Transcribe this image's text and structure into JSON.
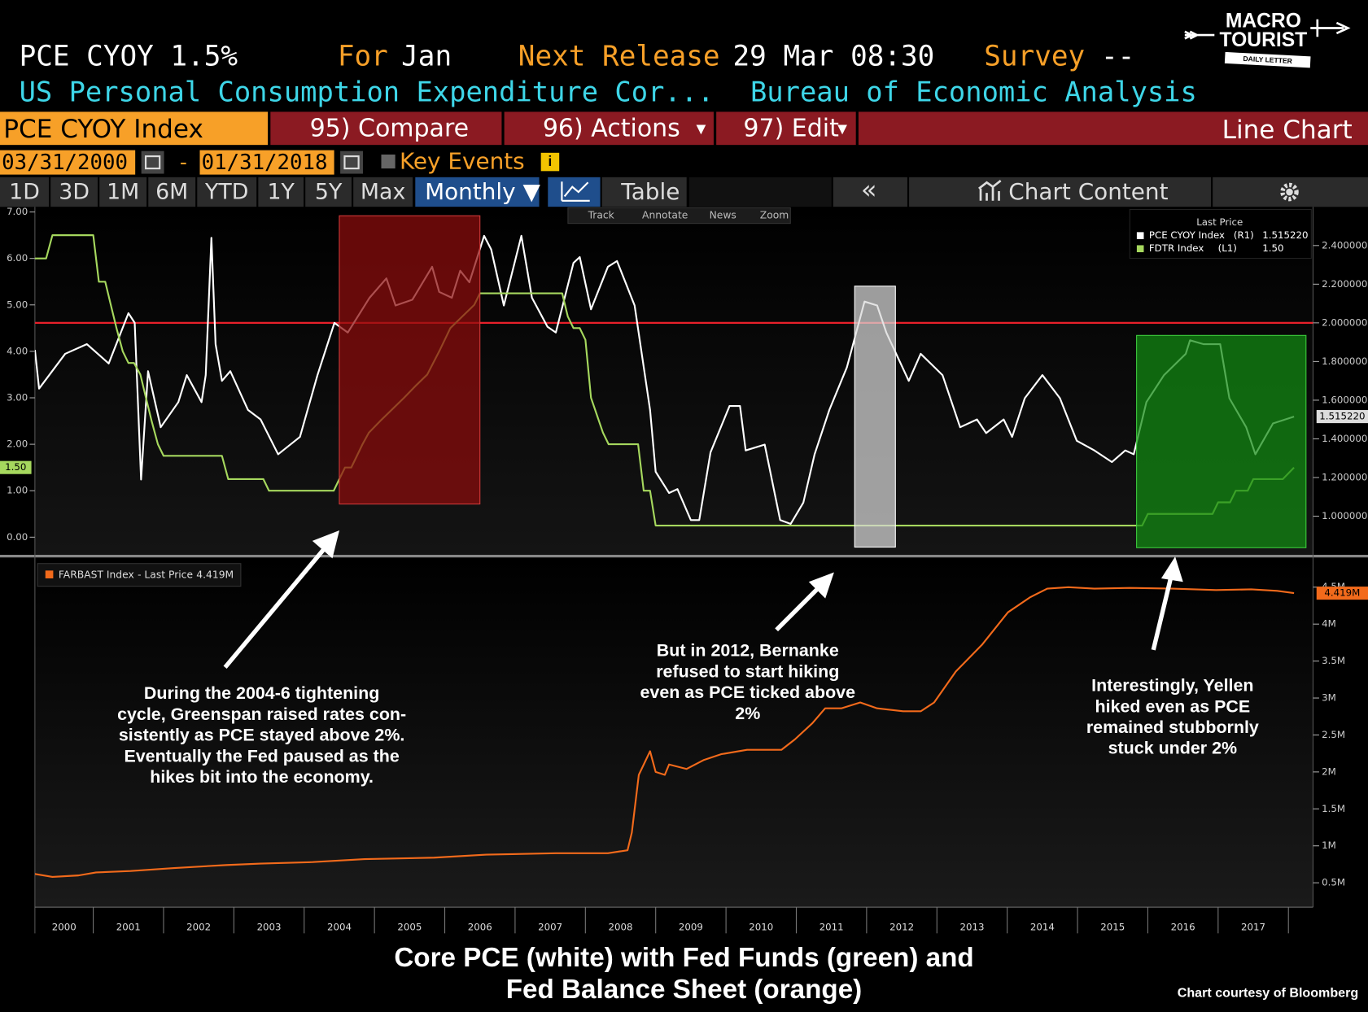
{
  "header": {
    "security": "PCE CYOY 1.5%",
    "for_label": "For",
    "for_value": "Jan",
    "release_label": "Next Release",
    "release_value": "29 Mar 08:30",
    "survey_label": "Survey",
    "survey_value": "--",
    "description": "US Personal Consumption Expenditure Cor...",
    "source": "Bureau of Economic Analysis"
  },
  "toolbar": {
    "ticker": "PCE CYOY Index",
    "menus": [
      "95) Compare",
      "96) Actions",
      "97) Edit"
    ],
    "dropdown_mark": "▾",
    "chart_kind": "Line Chart",
    "start_date": "03/31/2000",
    "date_separator": "-",
    "end_date": "01/31/2018",
    "key_events": "Key Events",
    "info": "i",
    "periods": [
      "1D",
      "3D",
      "1M",
      "6M",
      "YTD",
      "1Y",
      "5Y",
      "Max"
    ],
    "frequency": "Monthly ▼",
    "table": "Table",
    "collapse": "«",
    "chart_content": "Chart Content",
    "tools": [
      "Track",
      "Annotate",
      "News",
      "Zoom"
    ]
  },
  "logo": {
    "line1": "MACRO",
    "line2": "TOURIST",
    "line3": "DAILY LETTER"
  },
  "chart_data": [
    {
      "type": "line",
      "xlim": [
        2000.17,
        2018.35
      ],
      "ylim": [
        -0.38,
        7.11
      ],
      "yticks": [
        {
          "value": 0,
          "label": "0.00"
        },
        {
          "value": 1,
          "label": "1.00"
        },
        {
          "value": 2,
          "label": "2.00"
        },
        {
          "value": 3,
          "label": "3.00"
        },
        {
          "value": 4,
          "label": "4.00"
        },
        {
          "value": 5,
          "label": "5.00"
        },
        {
          "value": 6,
          "label": "6.00"
        },
        {
          "value": 7,
          "label": "7.00"
        }
      ],
      "y2lim": [
        0.8,
        2.6
      ],
      "y2ticks": [
        {
          "value": 1,
          "label": "1.000000"
        },
        {
          "value": 1.2,
          "label": "1.200000"
        },
        {
          "value": 1.4,
          "label": "1.400000"
        },
        {
          "value": 1.6,
          "label": "1.600000"
        },
        {
          "value": 1.8,
          "label": "1.800000"
        },
        {
          "value": 2,
          "label": "2.000000"
        },
        {
          "value": 2.2,
          "label": "2.200000"
        },
        {
          "value": 2.4,
          "label": "2.400000"
        }
      ],
      "legend_title": "Last Price",
      "series": [
        {
          "name": "PCE CYOY Index",
          "axis_tag": "(R1)",
          "axis": "y2",
          "color": "#ffffff",
          "last_price_label": "1.515220",
          "x": [
            2000.17,
            2000.23,
            2000.6,
            2000.91,
            2001.22,
            2001.5,
            2001.59,
            2001.68,
            2001.78,
            2001.96,
            2002.21,
            2002.33,
            2002.54,
            2002.6,
            2002.68,
            2002.74,
            2002.83,
            2002.95,
            2003.2,
            2003.38,
            2003.63,
            2003.94,
            2004.19,
            2004.43,
            2004.62,
            2004.93,
            2005.17,
            2005.3,
            2005.54,
            2005.82,
            2005.92,
            2006.1,
            2006.22,
            2006.35,
            2006.56,
            2006.66,
            2006.84,
            2007.09,
            2007.24,
            2007.46,
            2007.58,
            2007.83,
            2007.92,
            2008.08,
            2008.32,
            2008.45,
            2008.7,
            2008.92,
            2009.0,
            2009.19,
            2009.31,
            2009.5,
            2009.62,
            2009.78,
            2010.05,
            2010.2,
            2010.28,
            2010.55,
            2010.77,
            2010.92,
            2011.1,
            2011.26,
            2011.47,
            2011.72,
            2011.97,
            2012.15,
            2012.28,
            2012.6,
            2012.77,
            2013.08,
            2013.33,
            2013.57,
            2013.7,
            2013.95,
            2014.07,
            2014.25,
            2014.5,
            2014.75,
            2014.99,
            2015.24,
            2015.49,
            2015.68,
            2015.8,
            2015.98,
            2016.23,
            2016.54,
            2016.6,
            2016.79,
            2017.03,
            2017.16,
            2017.4,
            2017.53,
            2017.78,
            2018.08
          ],
          "values": [
            1.86,
            1.66,
            1.84,
            1.89,
            1.79,
            2.05,
            2.0,
            1.19,
            1.75,
            1.46,
            1.59,
            1.73,
            1.59,
            1.73,
            2.44,
            1.89,
            1.7,
            1.75,
            1.55,
            1.5,
            1.32,
            1.41,
            1.73,
            2.0,
            1.95,
            2.13,
            2.23,
            2.09,
            2.12,
            2.29,
            2.16,
            2.13,
            2.27,
            2.21,
            2.45,
            2.38,
            2.09,
            2.45,
            2.13,
            1.98,
            1.95,
            2.31,
            2.34,
            2.07,
            2.29,
            2.32,
            2.09,
            1.55,
            1.23,
            1.12,
            1.14,
            0.98,
            0.98,
            1.33,
            1.57,
            1.57,
            1.34,
            1.37,
            0.98,
            0.96,
            1.07,
            1.32,
            1.55,
            1.77,
            2.11,
            2.09,
            1.95,
            1.7,
            1.84,
            1.73,
            1.46,
            1.5,
            1.43,
            1.5,
            1.41,
            1.61,
            1.73,
            1.61,
            1.39,
            1.34,
            1.28,
            1.34,
            1.32,
            1.59,
            1.73,
            1.84,
            1.91,
            1.89,
            1.89,
            1.61,
            1.46,
            1.32,
            1.48,
            1.51522
          ]
        },
        {
          "name": "FDTR Index",
          "axis_tag": "(L1)",
          "axis": "y",
          "color": "#a6d85e",
          "last_price_label": "1.50",
          "x": [
            2000.17,
            2000.33,
            2000.42,
            2001.0,
            2001.08,
            2001.17,
            2001.25,
            2001.33,
            2001.42,
            2001.5,
            2001.58,
            2001.67,
            2001.75,
            2001.83,
            2001.92,
            2002.0,
            2002.83,
            2002.92,
            2003.42,
            2003.5,
            2004.42,
            2004.5,
            2004.58,
            2004.67,
            2004.75,
            2004.83,
            2004.92,
            2005.08,
            2005.25,
            2005.42,
            2005.58,
            2005.75,
            2005.92,
            2006.08,
            2006.25,
            2006.42,
            2006.5,
            2007.67,
            2007.75,
            2007.83,
            2007.92,
            2008.0,
            2008.08,
            2008.25,
            2008.33,
            2008.75,
            2008.83,
            2008.92,
            2009.0,
            2015.92,
            2016.0,
            2016.92,
            2017.0,
            2017.17,
            2017.25,
            2017.42,
            2017.5,
            2017.92,
            2018.08
          ],
          "values": [
            6.0,
            6.0,
            6.5,
            6.5,
            5.5,
            5.5,
            5.0,
            4.5,
            4.0,
            3.75,
            3.75,
            3.5,
            3.0,
            2.5,
            2.0,
            1.75,
            1.75,
            1.25,
            1.25,
            1.0,
            1.0,
            1.25,
            1.5,
            1.5,
            1.75,
            2.0,
            2.25,
            2.5,
            2.75,
            3.0,
            3.25,
            3.5,
            4.0,
            4.5,
            4.75,
            5.0,
            5.25,
            5.25,
            4.75,
            4.5,
            4.5,
            4.25,
            3.0,
            2.25,
            2.0,
            2.0,
            1.0,
            1.0,
            0.25,
            0.25,
            0.5,
            0.5,
            0.75,
            0.75,
            1.0,
            1.0,
            1.25,
            1.25,
            1.5
          ]
        }
      ],
      "reference_lines": [
        {
          "value": 2,
          "axis": "y2",
          "color": "#e8202a"
        }
      ],
      "highlights": [
        {
          "x0": 2004.5,
          "x1": 2006.5,
          "y0": 1.063,
          "y1": 2.554,
          "color": "#8e0c0c",
          "stroke": "#d23a3a"
        },
        {
          "x0": 2011.83,
          "x1": 2012.41,
          "y0": 0.84,
          "y1": 2.19,
          "color": "#d8d8d8",
          "stroke": "#ffffff"
        },
        {
          "x0": 2015.84,
          "x1": 2018.25,
          "y0": 0.837,
          "y1": 1.935,
          "color": "#128c12",
          "stroke": "#3ecf3e"
        }
      ]
    },
    {
      "type": "line",
      "xlim": [
        2000.17,
        2018.35
      ],
      "xticks": [
        2000,
        2001,
        2002,
        2003,
        2004,
        2005,
        2006,
        2007,
        2008,
        2009,
        2010,
        2011,
        2012,
        2013,
        2014,
        2015,
        2016,
        2017
      ],
      "ylim": [
        0.17,
        4.89
      ],
      "yticks": [
        {
          "value": 0.5,
          "label": "0.5M"
        },
        {
          "value": 1,
          "label": "1M"
        },
        {
          "value": 1.5,
          "label": "1.5M"
        },
        {
          "value": 2,
          "label": "2M"
        },
        {
          "value": 2.5,
          "label": "2.5M"
        },
        {
          "value": 3,
          "label": "3M"
        },
        {
          "value": 3.5,
          "label": "3.5M"
        },
        {
          "value": 4,
          "label": "4M"
        },
        {
          "value": 4.5,
          "label": "4.5M"
        }
      ],
      "legend_title": "- Last Price",
      "series": [
        {
          "name": "FARBAST Index",
          "axis": "y",
          "color": "#f26a1b",
          "last_price_label": "4.419M",
          "x": [
            2000.17,
            2000.42,
            2000.79,
            2001.04,
            2001.53,
            2002.15,
            2002.89,
            2003.38,
            2004.12,
            2004.86,
            2005.85,
            2006.59,
            2007.58,
            2008.32,
            2008.6,
            2008.66,
            2008.76,
            2008.92,
            2009.0,
            2009.13,
            2009.19,
            2009.44,
            2009.68,
            2009.93,
            2010.3,
            2010.79,
            2010.98,
            2011.23,
            2011.41,
            2011.64,
            2011.91,
            2012.15,
            2012.52,
            2012.77,
            2012.96,
            2013.27,
            2013.64,
            2014.01,
            2014.32,
            2014.57,
            2014.87,
            2015.24,
            2015.74,
            2016.35,
            2016.97,
            2017.47,
            2017.84,
            2018.08
          ],
          "values": [
            0.62,
            0.58,
            0.6,
            0.64,
            0.66,
            0.7,
            0.74,
            0.76,
            0.78,
            0.82,
            0.84,
            0.88,
            0.9,
            0.9,
            0.94,
            1.18,
            1.96,
            2.28,
            2.0,
            1.96,
            2.1,
            2.04,
            2.16,
            2.24,
            2.3,
            2.3,
            2.44,
            2.66,
            2.86,
            2.86,
            2.94,
            2.86,
            2.82,
            2.82,
            2.94,
            3.36,
            3.72,
            4.16,
            4.36,
            4.48,
            4.5,
            4.48,
            4.49,
            4.48,
            4.46,
            4.47,
            4.45,
            4.419
          ]
        }
      ]
    }
  ],
  "annotations": [
    {
      "lines": [
        "During the 2004-6 tightening",
        "cycle, Greenspan raised rates con-",
        "sistently as PCE stayed above 2%.",
        "Eventually the Fed paused as the",
        "hikes bit into the economy."
      ]
    },
    {
      "lines": [
        "But in 2012, Bernanke",
        "refused to start hiking",
        "even as PCE ticked above",
        "2%"
      ]
    },
    {
      "lines": [
        "Interestingly, Yellen",
        "hiked even as PCE",
        "remained stubbornly",
        "stuck under 2%"
      ]
    }
  ],
  "caption": {
    "line1": "Core PCE (white) with Fed Funds (green) and",
    "line2": "Fed Balance Sheet (orange)",
    "credit": "Chart courtesy of Bloomberg"
  }
}
